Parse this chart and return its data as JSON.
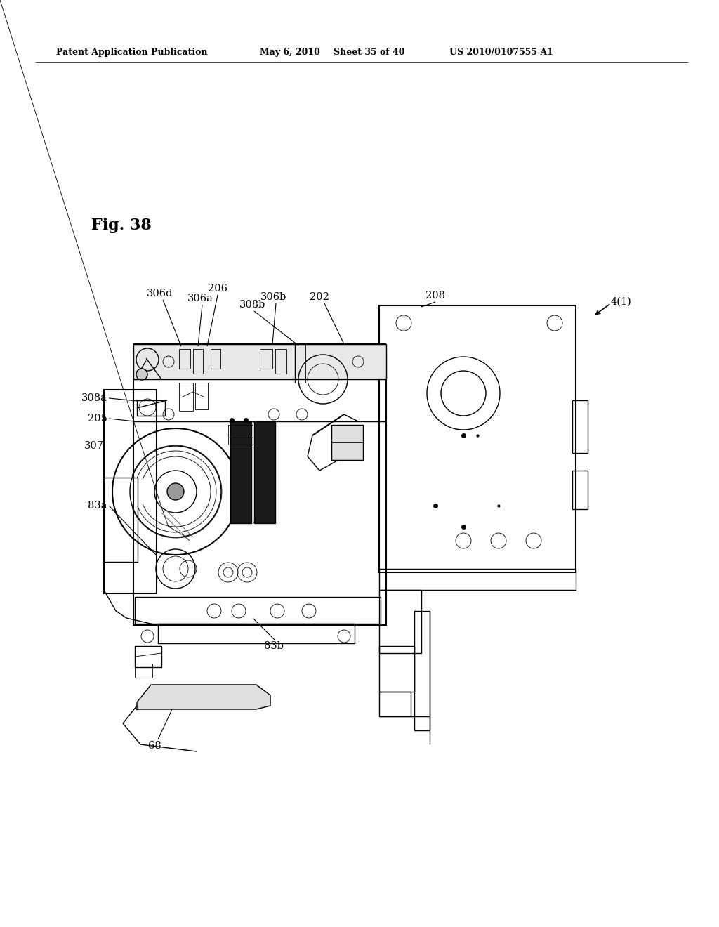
{
  "bg_color": "#ffffff",
  "fig_width": 10.24,
  "fig_height": 13.2,
  "header_text": "Patent Application Publication",
  "header_date": "May 6, 2010",
  "header_sheet": "Sheet 35 of 40",
  "header_patent": "US 2010/0107555 A1",
  "fig_label": "Fig. 38",
  "label_fontsize": 10,
  "header_fontsize": 9
}
